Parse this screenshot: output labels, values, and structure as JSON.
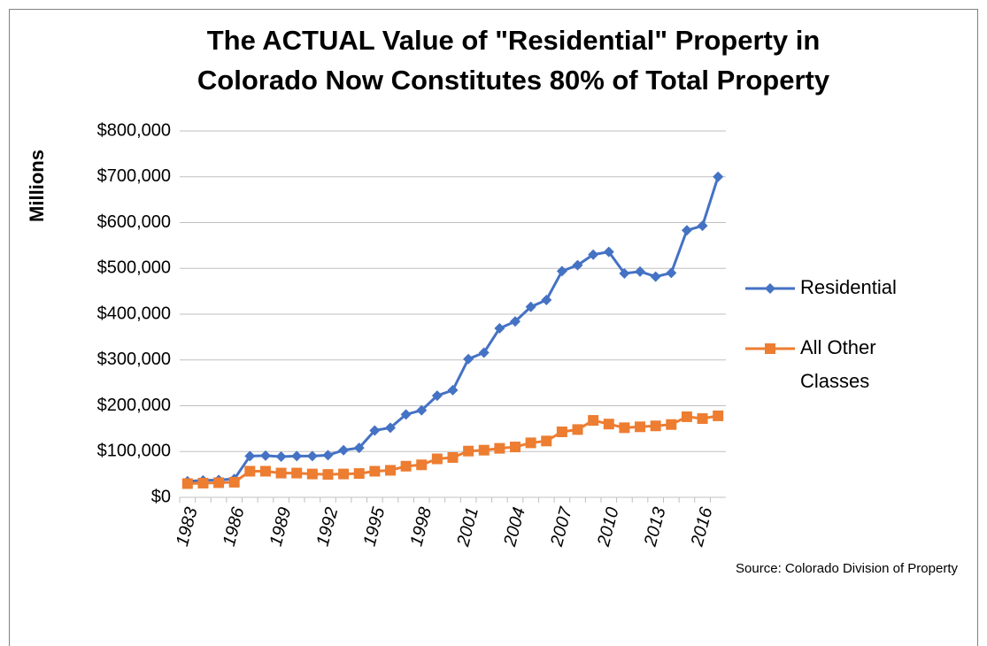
{
  "chart_data": {
    "type": "line",
    "title": [
      "The ACTUAL Value of \"Residential\" Property in",
      "Colorado Now Constitutes 80% of Total Property"
    ],
    "y_label": "Millions",
    "source": "Source:   Colorado Division of Property",
    "categories": [
      "1983",
      null,
      null,
      "1986",
      null,
      null,
      "1989",
      null,
      null,
      "1992",
      null,
      null,
      "1995",
      null,
      null,
      "1998",
      null,
      null,
      "2001",
      null,
      null,
      "2004",
      null,
      null,
      "2007",
      null,
      null,
      "2010",
      null,
      null,
      "2013",
      null,
      null,
      "2016",
      null
    ],
    "series": [
      {
        "name": "Residential",
        "color": "#4472c4",
        "marker": "diamond",
        "values": [
          35000,
          37000,
          38000,
          40000,
          90000,
          91000,
          89000,
          90000,
          90000,
          92000,
          103000,
          108000,
          146000,
          152000,
          181000,
          190000,
          222000,
          234000,
          302000,
          316000,
          369000,
          384000,
          416000,
          431000,
          494000,
          507000,
          530000,
          536000,
          489000,
          493000,
          482000,
          490000,
          583000,
          593000,
          700000
        ]
      },
      {
        "name": "All Other Classes",
        "color": "#ed7d31",
        "marker": "square",
        "values": [
          30000,
          31000,
          32000,
          33000,
          57000,
          57000,
          53000,
          53000,
          51000,
          50000,
          51000,
          52000,
          57000,
          59000,
          68000,
          71000,
          84000,
          87000,
          101000,
          103000,
          107000,
          110000,
          119000,
          123000,
          143000,
          148000,
          168000,
          160000,
          152000,
          154000,
          156000,
          159000,
          176000,
          172000,
          178000
        ]
      }
    ],
    "ylim": [
      0,
      800000
    ],
    "yticks": [
      {
        "value": 0,
        "label": "$0"
      },
      {
        "value": 100000,
        "label": "$100,000"
      },
      {
        "value": 200000,
        "label": "$200,000"
      },
      {
        "value": 300000,
        "label": "$300,000"
      },
      {
        "value": 400000,
        "label": "$400,000"
      },
      {
        "value": 500000,
        "label": "$500,000"
      },
      {
        "value": 600000,
        "label": "$600,000"
      },
      {
        "value": 700000,
        "label": "$700,000"
      },
      {
        "value": 800000,
        "label": "$800,000"
      }
    ],
    "grid": true
  }
}
